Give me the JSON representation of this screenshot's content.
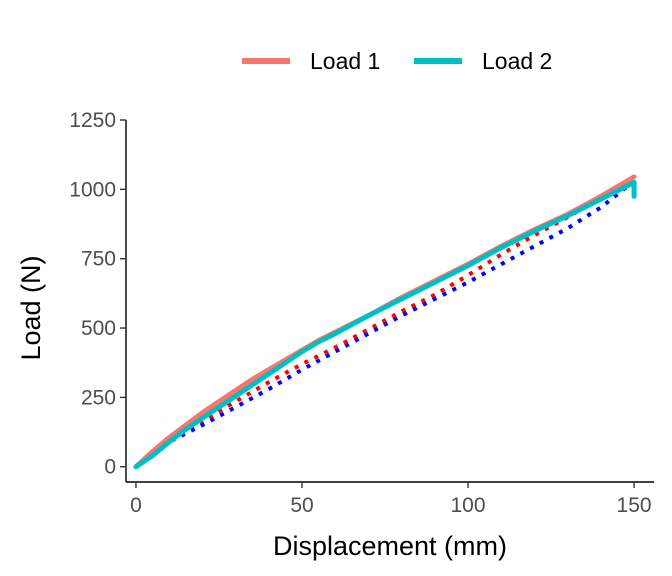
{
  "chart_data": {
    "type": "line",
    "xlabel": "Displacement (mm)",
    "ylabel": "Load (N)",
    "xlim": [
      -3,
      156
    ],
    "ylim": [
      -55,
      1250
    ],
    "x_ticks": [
      0,
      50,
      100,
      150
    ],
    "x_tick_labels": [
      "0",
      "50",
      "100",
      "150"
    ],
    "y_ticks": [
      0,
      250,
      500,
      750,
      1000,
      1250
    ],
    "y_tick_labels": [
      "0",
      "250",
      "500",
      "750",
      "1000",
      "1250"
    ],
    "grid": false,
    "legend_position": "top",
    "series": [
      {
        "name": "Load 1",
        "color": "#F8766D",
        "style": "solid",
        "x": [
          0,
          5,
          10,
          15,
          20,
          25,
          30,
          35,
          40,
          45,
          50,
          55,
          60,
          70,
          80,
          90,
          100,
          110,
          120,
          130,
          140,
          150
        ],
        "y": [
          0,
          55,
          105,
          150,
          195,
          235,
          275,
          315,
          350,
          385,
          420,
          455,
          485,
          545,
          610,
          670,
          730,
          795,
          855,
          910,
          975,
          1045
        ]
      },
      {
        "name": "Load 2",
        "color": "#00BFC4",
        "style": "solid",
        "x": [
          0,
          5,
          10,
          15,
          20,
          25,
          30,
          35,
          40,
          45,
          50,
          55,
          60,
          70,
          80,
          90,
          100,
          110,
          120,
          130,
          140,
          150,
          150
        ],
        "y": [
          0,
          40,
          90,
          135,
          175,
          215,
          255,
          295,
          335,
          375,
          415,
          450,
          480,
          545,
          605,
          665,
          725,
          790,
          850,
          905,
          965,
          1025,
          975
        ]
      },
      {
        "name": "",
        "color": "#FF0000",
        "style": "dotted",
        "x": [
          5,
          10,
          15,
          20,
          30,
          40,
          50,
          60,
          70,
          80,
          90,
          100,
          110,
          120,
          130,
          140,
          150
        ],
        "y": [
          55,
          90,
          130,
          165,
          235,
          305,
          370,
          430,
          495,
          560,
          620,
          690,
          765,
          835,
          900,
          970,
          1045
        ]
      },
      {
        "name": "",
        "color": "#0000FF",
        "style": "dotted",
        "x": [
          0,
          5,
          10,
          20,
          30,
          40,
          50,
          60,
          70,
          80,
          90,
          100,
          110,
          120,
          130,
          140,
          150
        ],
        "y": [
          0,
          40,
          90,
          150,
          215,
          280,
          350,
          415,
          480,
          545,
          605,
          665,
          730,
          795,
          860,
          935,
          1030
        ]
      }
    ]
  }
}
